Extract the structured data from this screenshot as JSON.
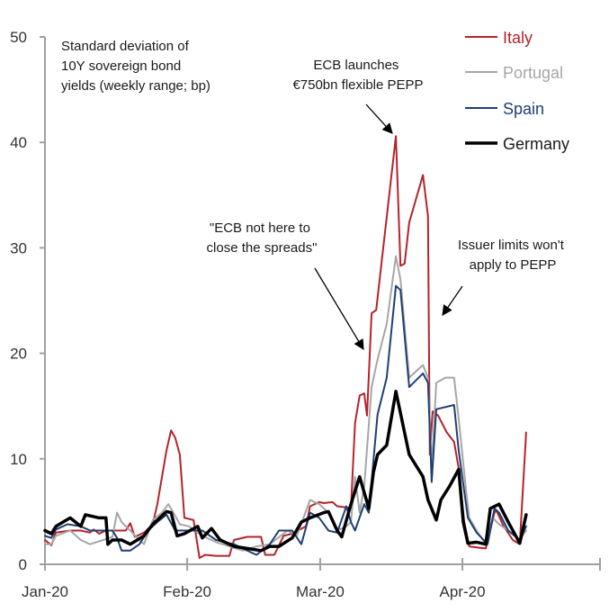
{
  "chart_data": {
    "type": "line",
    "title": "",
    "xlabel": "",
    "ylabel": "",
    "x_unit": "days since 1 Jan 2020",
    "xlim": [
      0,
      121
    ],
    "ylim": [
      0,
      50
    ],
    "yticks": [
      0,
      10,
      20,
      30,
      40,
      50
    ],
    "xticks": [
      {
        "value": 0,
        "label": "Jan-20"
      },
      {
        "value": 31,
        "label": "Feb-20"
      },
      {
        "value": 60,
        "label": "Mar-20"
      },
      {
        "value": 91,
        "label": "Apr-20"
      },
      {
        "value": 121,
        "label": ""
      }
    ],
    "grid": false,
    "legend_position": "top-right",
    "subtitle_lines": [
      "Standard deviation of",
      "10Y sovereign bond",
      "yields (weekly range; bp)"
    ],
    "annotations": [
      {
        "id": "pepp",
        "lines": [
          "ECB launches",
          "€750bn flexible PEPP"
        ],
        "arrow_to": [
          76.5,
          40.6
        ]
      },
      {
        "id": "spreads",
        "lines": [
          "\"ECB not here to",
          "close the spreads\""
        ],
        "arrow_to": [
          67.8,
          18.5
        ]
      },
      {
        "id": "issuer",
        "lines": [
          "Issuer limits won't",
          "apply to PEPP"
        ],
        "arrow_to": [
          86.0,
          23.0
        ]
      }
    ],
    "series": [
      {
        "name": "Italy",
        "color": "#b5232b",
        "width": 2,
        "x": [
          0,
          1.4,
          2.4,
          5.5,
          7.8,
          9.8,
          10.6,
          11.8,
          13.3,
          15.7,
          17.6,
          18.6,
          19.6,
          21.6,
          23.5,
          24.5,
          26.5,
          27.5,
          28.4,
          29.4,
          30.4,
          32.4,
          33.7,
          34.9,
          37.3,
          40.2,
          41.2,
          44.1,
          47.1,
          48.0,
          50.0,
          52.0,
          53.9,
          56.9,
          57.8,
          59.8,
          60.8,
          62.7,
          63.7,
          65.7,
          66.7,
          67.6,
          68.6,
          69.6,
          70.2,
          71.2,
          72.2,
          76.5,
          77.5,
          78.4,
          79.4,
          82.4,
          83.5,
          83.9,
          84.5,
          85.7,
          87.6,
          89.2,
          90.2,
          91.4,
          92.5,
          94.1,
          96.1,
          98.0,
          98.4,
          100.0,
          102.0,
          103.5,
          104.9
        ],
        "values": [
          2.3,
          1.8,
          3.0,
          3.2,
          3.2,
          3.0,
          3.3,
          2.9,
          3.2,
          3.2,
          3.2,
          3.9,
          2.6,
          3.0,
          3.8,
          5.7,
          10.8,
          12.7,
          12.0,
          10.4,
          4.4,
          4.2,
          0.6,
          0.9,
          0.8,
          0.8,
          2.3,
          2.6,
          2.6,
          0.9,
          0.9,
          2.7,
          2.9,
          3.6,
          5.5,
          5.9,
          5.8,
          5.9,
          5.5,
          5.4,
          5.3,
          13.4,
          16.0,
          16.2,
          14.1,
          23.8,
          24.1,
          40.6,
          28.3,
          28.5,
          32.4,
          36.9,
          33.0,
          10.4,
          14.5,
          14.1,
          12.5,
          11.6,
          9.1,
          4.0,
          1.7,
          1.6,
          1.5,
          4.9,
          5.1,
          3.6,
          2.3,
          1.9,
          12.5
        ]
      },
      {
        "name": "Portugal",
        "color": "#a6a6a6",
        "width": 2,
        "x": [
          0,
          1.4,
          2.4,
          5.5,
          7.8,
          9.8,
          12.7,
          14.7,
          15.7,
          16.7,
          18.6,
          20.6,
          21.6,
          23.5,
          25.5,
          26.9,
          28.4,
          29.4,
          31.4,
          34.3,
          37.3,
          40.2,
          43.1,
          46.1,
          49.0,
          52.9,
          54.9,
          57.8,
          59.8,
          61.8,
          63.7,
          65.7,
          66.7,
          67.6,
          68.6,
          69.6,
          71.2,
          72.5,
          74.5,
          76.5,
          77.5,
          79.4,
          80.4,
          82.4,
          83.5,
          84.3,
          85.3,
          87.3,
          89.2,
          90.2,
          91.8,
          92.5,
          94.1,
          96.1,
          97.6,
          99.0,
          101.0,
          103.5,
          104.9
        ],
        "values": [
          1.9,
          1.9,
          2.7,
          3.2,
          2.3,
          1.9,
          2.3,
          2.6,
          4.9,
          4.0,
          3.2,
          2.3,
          1.9,
          4.2,
          4.9,
          5.7,
          4.6,
          3.8,
          3.6,
          2.7,
          2.1,
          1.7,
          1.3,
          1.7,
          1.9,
          3.2,
          2.7,
          6.1,
          5.7,
          4.9,
          3.2,
          3.6,
          4.0,
          8.3,
          4.9,
          7.4,
          16.8,
          19.4,
          22.8,
          29.2,
          27.0,
          17.7,
          18.1,
          18.9,
          17.7,
          9.1,
          17.2,
          17.7,
          17.7,
          13.8,
          7.0,
          4.4,
          3.2,
          1.9,
          4.4,
          3.8,
          3.2,
          2.3,
          3.2
        ]
      },
      {
        "name": "Spain",
        "color": "#1f3f73",
        "width": 2,
        "x": [
          0,
          1.4,
          2.4,
          4.9,
          7.8,
          9.8,
          12.7,
          14.7,
          15.7,
          16.7,
          18.6,
          20.6,
          22.5,
          24.5,
          26.5,
          28.4,
          31.4,
          34.3,
          37.3,
          41.2,
          44.1,
          46.1,
          49.0,
          51.0,
          53.9,
          55.9,
          57.8,
          59.8,
          61.8,
          63.7,
          65.7,
          66.7,
          67.6,
          69.6,
          70.6,
          72.5,
          74.5,
          76.5,
          77.5,
          79.4,
          82.4,
          83.5,
          84.3,
          85.3,
          89.2,
          90.2,
          92.2,
          94.1,
          96.5,
          98.0,
          99.0,
          101.0,
          103.5,
          104.9
        ],
        "values": [
          2.7,
          2.5,
          3.3,
          3.8,
          3.6,
          3.2,
          3.2,
          3.2,
          2.5,
          1.3,
          1.3,
          1.9,
          3.2,
          4.0,
          4.7,
          3.2,
          3.2,
          3.2,
          2.3,
          1.9,
          1.3,
          0.9,
          1.9,
          3.2,
          3.2,
          1.9,
          4.9,
          4.4,
          3.2,
          3.0,
          5.5,
          4.0,
          3.2,
          5.7,
          4.9,
          14.2,
          17.7,
          26.4,
          26.0,
          16.8,
          18.1,
          17.2,
          7.8,
          14.7,
          15.1,
          10.8,
          4.4,
          3.0,
          1.9,
          5.3,
          4.9,
          3.2,
          2.3,
          3.6
        ]
      },
      {
        "name": "Germany",
        "color": "#000000",
        "width": 3.5,
        "x": [
          0,
          1.4,
          2.4,
          5.5,
          7.8,
          8.8,
          11.8,
          13.3,
          13.7,
          14.7,
          16.7,
          18.6,
          21.6,
          23.5,
          26.5,
          27.5,
          28.8,
          30.4,
          33.3,
          34.3,
          36.3,
          38.2,
          41.2,
          44.1,
          47.1,
          49.0,
          51.0,
          53.9,
          55.9,
          57.8,
          60.8,
          61.8,
          63.7,
          64.7,
          66.7,
          68.6,
          70.6,
          71.6,
          72.5,
          74.5,
          76.5,
          79.4,
          82.4,
          83.5,
          85.3,
          86.3,
          88.2,
          90.2,
          91.2,
          92.2,
          94.1,
          96.1,
          97.1,
          99.0,
          101.0,
          103.5,
          104.9
        ],
        "values": [
          3.2,
          2.9,
          3.6,
          4.4,
          3.6,
          4.7,
          4.4,
          4.4,
          1.9,
          2.3,
          2.3,
          1.9,
          2.7,
          3.8,
          5.0,
          4.9,
          2.7,
          2.9,
          3.6,
          2.5,
          3.4,
          2.3,
          1.7,
          1.5,
          1.3,
          1.7,
          1.7,
          2.5,
          4.0,
          4.4,
          4.9,
          5.0,
          3.2,
          2.6,
          5.7,
          8.3,
          5.3,
          8.7,
          10.4,
          11.3,
          16.4,
          10.4,
          8.3,
          6.1,
          4.2,
          6.1,
          7.4,
          9.0,
          4.0,
          2.0,
          2.1,
          1.9,
          5.3,
          5.7,
          4.0,
          2.0,
          4.7
        ]
      }
    ]
  }
}
